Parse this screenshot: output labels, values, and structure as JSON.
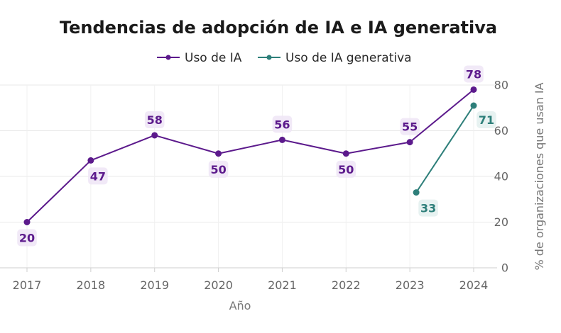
{
  "chart_data": {
    "type": "line",
    "title": "Tendencias de adopción de IA e IA generativa",
    "xlabel": "Año",
    "ylabel": "% de organizaciones que usan IA",
    "x": [
      "2017",
      "2018",
      "2019",
      "2020",
      "2021",
      "2022",
      "2023",
      "2024"
    ],
    "xlim": [
      2017,
      2024
    ],
    "ylim": [
      0,
      80
    ],
    "yticks": [
      "0",
      "20",
      "40",
      "60",
      "80"
    ],
    "grid": true,
    "legend_position": "top-center",
    "series": [
      {
        "name": "Uso de IA",
        "color": "#5c1a8c",
        "label_bg": "#efe7f6",
        "points": [
          {
            "x": 2017,
            "y": 20,
            "label": "20"
          },
          {
            "x": 2018,
            "y": 47,
            "label": "47"
          },
          {
            "x": 2019,
            "y": 58,
            "label": "58"
          },
          {
            "x": 2020,
            "y": 50,
            "label": "50"
          },
          {
            "x": 2021,
            "y": 56,
            "label": "56"
          },
          {
            "x": 2022,
            "y": 50,
            "label": "50"
          },
          {
            "x": 2023,
            "y": 55,
            "label": "55"
          },
          {
            "x": 2024,
            "y": 78,
            "label": "78"
          }
        ]
      },
      {
        "name": "Uso de IA generativa",
        "color": "#2e7f7a",
        "label_bg": "#e4f1f0",
        "points": [
          {
            "x": 2023.1,
            "y": 33,
            "label": "33"
          },
          {
            "x": 2024,
            "y": 71,
            "label": "71"
          }
        ]
      }
    ]
  }
}
